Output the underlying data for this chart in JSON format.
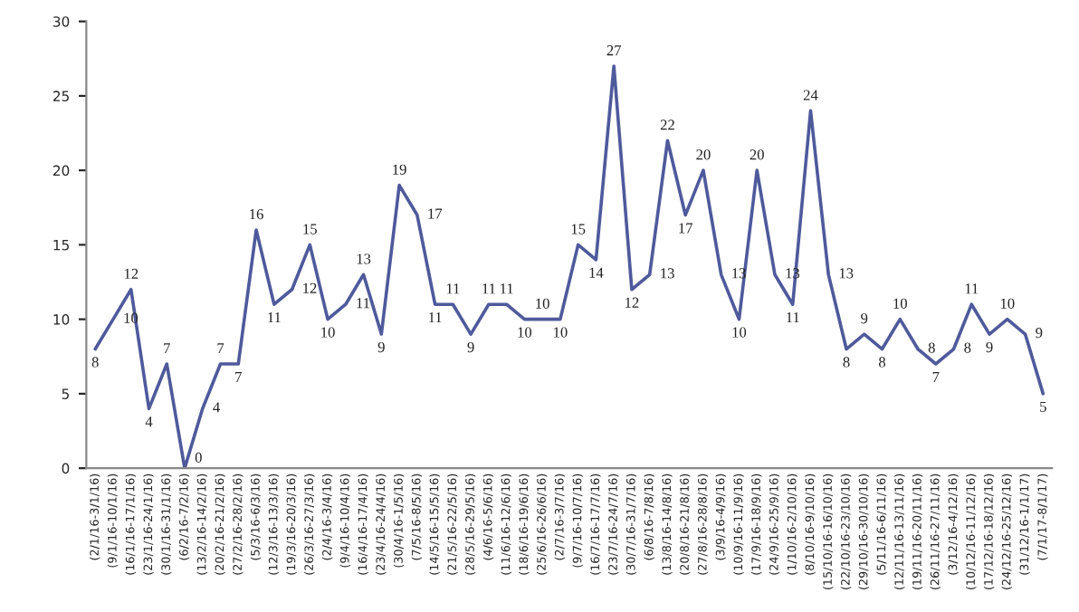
{
  "chart_data": {
    "type": "line",
    "categories": [
      "(2/1/16-3/1/16)",
      "(9/1/16-10/1/16)",
      "(16/1/16-17/1/16)",
      "(23/1/16-24/1/16)",
      "(30/1/16-31/1/16)",
      "(6/2/16-7/2/16)",
      "(13/2/16-14/2/16)",
      "(20/2/16-21/2/16)",
      "(27/2/16-28/2/16)",
      "(5/3/16-6/3/16)",
      "(12/3/16-13/3/16)",
      "(19/3/16-20/3/16)",
      "(26/3/16-27/3/16)",
      "(2/4/16-3/4/16)",
      "(9/4/16-10/4/16)",
      "(16/4/16-17/4/16)",
      "(23/4/16-24/4/16)",
      "(30/4/16-1/5/16)",
      "(7/5/16-8/5/16)",
      "(14/5/16-15/5/16)",
      "(21/5/16-22/5/16)",
      "(28/5/16-29/5/16)",
      "(4/6/16-5/6/16)",
      "(11/6/16-12/6/16)",
      "(18/6/16-19/6/16)",
      "(25/6/16-26/6/16)",
      "(2/7/16-3/7/16)",
      "(9/7/16-10/7/16)",
      "(16/7/16-17/7/16)",
      "(23/7/16-24/7/16)",
      "(30/7/16-31/7/16)",
      "(6/8/16-7/8/16)",
      "(13/8/16-14/8/16)",
      "(20/8/16-21/8/16)",
      "(27/8/16-28/8/16)",
      "(3/9/16-4/9/16)",
      "(10/9/16-11/9/16)",
      "(17/9/16-18/9/16)",
      "(24/9/16-25/9/16)",
      "(1/10/16-2/10/16)",
      "(8/10/16-9/10/16)",
      "(15/10/16-16/10/16)",
      "(22/10/16-23/10/16)",
      "(29/10/16-30/10/16)",
      "(5/11/16-6/11/16)",
      "(12/11/16-13/11/16)",
      "(19/11/16-20/11/16)",
      "(26/11/16-27/11/16)",
      "(3/12/16-4/12/16)",
      "(10/12/16-11/12/16)",
      "(17/12/16-18/12/16)",
      "(24/12/16-25/12/16)",
      "(31/12/16-1/1/17)",
      "(7/1/17-8/1/17)"
    ],
    "series": [
      {
        "color": "#4f5a9c",
        "values": [
          8,
          10,
          12,
          4,
          7,
          0,
          4,
          7,
          7,
          16,
          11,
          12,
          15,
          10,
          11,
          13,
          9,
          19,
          17,
          11,
          11,
          9,
          11,
          11,
          10,
          10,
          10,
          15,
          14,
          27,
          12,
          13,
          22,
          17,
          20,
          13,
          10,
          20,
          13,
          11,
          24,
          13,
          8,
          9,
          8,
          10,
          8,
          7,
          8,
          11,
          9,
          10,
          9,
          5
        ]
      }
    ],
    "ylim": [
      0,
      30
    ],
    "yticks": [
      0,
      5,
      10,
      15,
      20,
      25,
      30
    ],
    "data_labels": true,
    "grid": false,
    "marker": "none",
    "line_style": "solid"
  }
}
